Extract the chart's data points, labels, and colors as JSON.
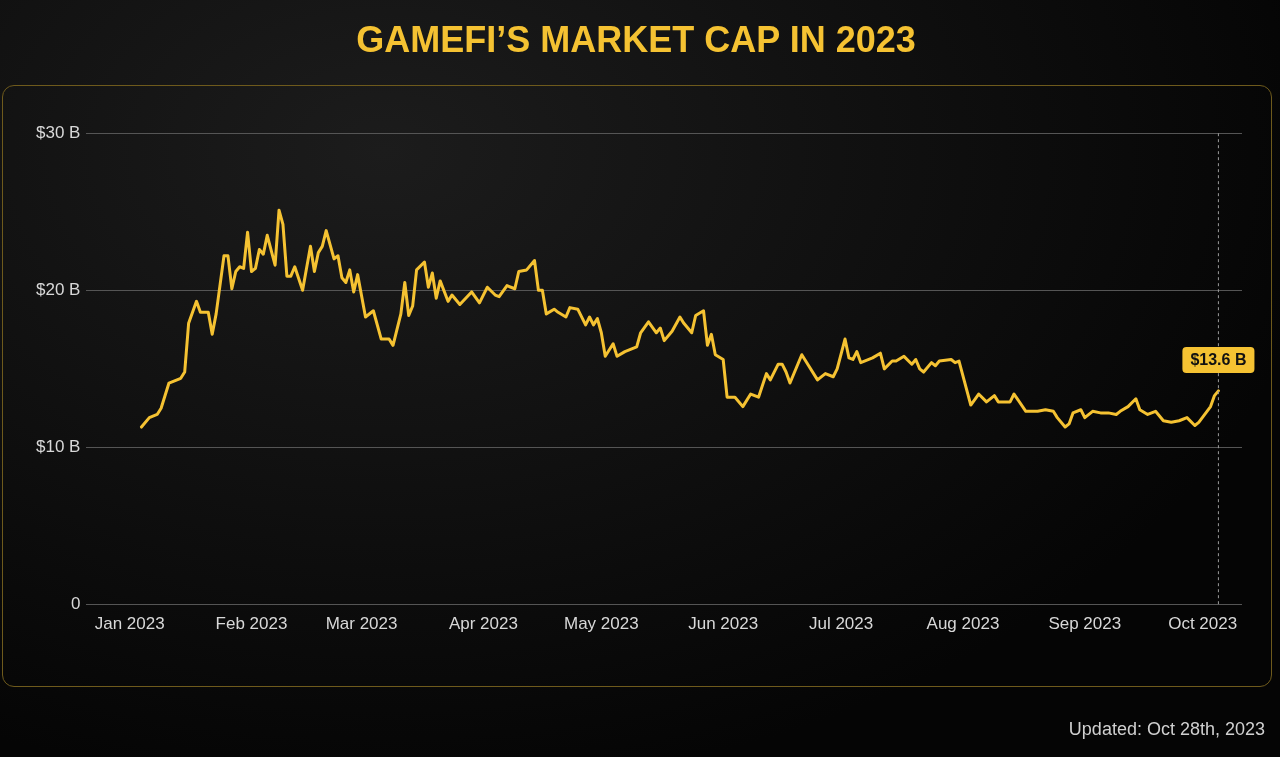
{
  "chart_data": {
    "type": "line",
    "title": "GAMEFI’S MARKET CAP IN 2023",
    "color": "#f5c232",
    "x": [
      "2023-01-04",
      "2023-01-06",
      "2023-01-08",
      "2023-01-09",
      "2023-01-11",
      "2023-01-14",
      "2023-01-15",
      "2023-01-16",
      "2023-01-18",
      "2023-01-19",
      "2023-01-21",
      "2023-01-22",
      "2023-01-23",
      "2023-01-25",
      "2023-01-26",
      "2023-01-27",
      "2023-01-28",
      "2023-01-29",
      "2023-01-30",
      "2023-01-31",
      "2023-02-01",
      "2023-02-02",
      "2023-02-03",
      "2023-02-04",
      "2023-02-05",
      "2023-02-07",
      "2023-02-08",
      "2023-02-09",
      "2023-02-10",
      "2023-02-11",
      "2023-02-12",
      "2023-02-14",
      "2023-02-16",
      "2023-02-17",
      "2023-02-18",
      "2023-02-19",
      "2023-02-20",
      "2023-02-22",
      "2023-02-23",
      "2023-02-24",
      "2023-02-25",
      "2023-02-26",
      "2023-02-27",
      "2023-02-28",
      "2023-03-02",
      "2023-03-04",
      "2023-03-06",
      "2023-03-08",
      "2023-03-09",
      "2023-03-11",
      "2023-03-12",
      "2023-03-13",
      "2023-03-14",
      "2023-03-15",
      "2023-03-17",
      "2023-03-18",
      "2023-03-19",
      "2023-03-20",
      "2023-03-21",
      "2023-03-23",
      "2023-03-24",
      "2023-03-26",
      "2023-03-29",
      "2023-03-31",
      "2023-04-02",
      "2023-04-04",
      "2023-04-05",
      "2023-04-07",
      "2023-04-09",
      "2023-04-10",
      "2023-04-12",
      "2023-04-14",
      "2023-04-15",
      "2023-04-16",
      "2023-04-17",
      "2023-04-19",
      "2023-04-20",
      "2023-04-22",
      "2023-04-23",
      "2023-04-25",
      "2023-04-27",
      "2023-04-28",
      "2023-04-29",
      "2023-04-30",
      "2023-05-01",
      "2023-05-02",
      "2023-05-04",
      "2023-05-05",
      "2023-05-07",
      "2023-05-10",
      "2023-05-11",
      "2023-05-13",
      "2023-05-15",
      "2023-05-16",
      "2023-05-17",
      "2023-05-19",
      "2023-05-21",
      "2023-05-22",
      "2023-05-24",
      "2023-05-25",
      "2023-05-27",
      "2023-05-28",
      "2023-05-29",
      "2023-05-30",
      "2023-06-01",
      "2023-06-02",
      "2023-06-04",
      "2023-06-06",
      "2023-06-08",
      "2023-06-10",
      "2023-06-12",
      "2023-06-13",
      "2023-06-15",
      "2023-06-16",
      "2023-06-17",
      "2023-06-18",
      "2023-06-21",
      "2023-06-22",
      "2023-06-25",
      "2023-06-27",
      "2023-06-29",
      "2023-06-30",
      "2023-07-02",
      "2023-07-03",
      "2023-07-04",
      "2023-07-05",
      "2023-07-06",
      "2023-07-09",
      "2023-07-11",
      "2023-07-12",
      "2023-07-14",
      "2023-07-15",
      "2023-07-17",
      "2023-07-19",
      "2023-07-20",
      "2023-07-21",
      "2023-07-22",
      "2023-07-24",
      "2023-07-25",
      "2023-07-26",
      "2023-07-29",
      "2023-07-30",
      "2023-07-31",
      "2023-08-03",
      "2023-08-05",
      "2023-08-07",
      "2023-08-09",
      "2023-08-10",
      "2023-08-13",
      "2023-08-14",
      "2023-08-17",
      "2023-08-20",
      "2023-08-22",
      "2023-08-24",
      "2023-08-25",
      "2023-08-27",
      "2023-08-28",
      "2023-08-29",
      "2023-08-31",
      "2023-09-01",
      "2023-09-03",
      "2023-09-05",
      "2023-09-07",
      "2023-09-09",
      "2023-09-10",
      "2023-09-12",
      "2023-09-14",
      "2023-09-15",
      "2023-09-17",
      "2023-09-19",
      "2023-09-21",
      "2023-09-23",
      "2023-09-25",
      "2023-09-27",
      "2023-09-29",
      "2023-09-30",
      "2023-10-03",
      "2023-10-04",
      "2023-10-05"
    ],
    "values": [
      11.3,
      11.9,
      12.1,
      12.5,
      14.1,
      14.4,
      14.8,
      17.9,
      19.3,
      18.6,
      18.6,
      17.2,
      18.5,
      22.2,
      22.2,
      20.1,
      21.2,
      21.5,
      21.4,
      23.7,
      21.2,
      21.4,
      22.6,
      22.3,
      23.5,
      21.6,
      25.1,
      24.2,
      20.9,
      20.9,
      21.5,
      20.0,
      22.8,
      21.2,
      22.4,
      22.8,
      23.8,
      22.0,
      22.2,
      20.8,
      20.5,
      21.3,
      19.9,
      21.0,
      18.3,
      18.7,
      16.9,
      16.9,
      16.5,
      18.5,
      20.5,
      18.4,
      19.0,
      21.3,
      21.8,
      20.2,
      21.1,
      19.5,
      20.6,
      19.3,
      19.7,
      19.1,
      19.9,
      19.2,
      20.2,
      19.7,
      19.6,
      20.3,
      20.1,
      21.2,
      21.3,
      21.9,
      20.0,
      20.0,
      18.5,
      18.8,
      18.6,
      18.3,
      18.9,
      18.8,
      17.8,
      18.3,
      17.8,
      18.2,
      17.3,
      15.8,
      16.6,
      15.8,
      16.1,
      16.4,
      17.3,
      18.0,
      17.3,
      17.6,
      16.8,
      17.4,
      18.3,
      17.9,
      17.3,
      18.4,
      18.7,
      16.5,
      17.2,
      15.9,
      15.6,
      13.2,
      13.2,
      12.6,
      13.4,
      13.2,
      14.7,
      14.3,
      15.3,
      15.3,
      14.8,
      14.1,
      15.9,
      15.5,
      14.3,
      14.7,
      14.5,
      15.0,
      16.9,
      15.7,
      15.6,
      16.1,
      15.4,
      15.7,
      16.0,
      15.0,
      15.5,
      15.5,
      15.8,
      15.3,
      15.6,
      15.0,
      14.8,
      15.4,
      15.2,
      15.5,
      15.6,
      15.4,
      15.5,
      12.7,
      13.4,
      12.9,
      13.3,
      12.9,
      12.9,
      13.4,
      12.3,
      12.3,
      12.4,
      12.3,
      11.9,
      11.3,
      11.5,
      12.2,
      12.4,
      11.9,
      12.3,
      12.2,
      12.2,
      12.1,
      12.3,
      12.6,
      13.1,
      12.4,
      12.1,
      12.3,
      11.7,
      11.6,
      11.7,
      11.9,
      11.4,
      11.6,
      12.6,
      13.3,
      13.6
    ],
    "xlim": [
      "2022-12-21",
      "2023-10-11"
    ],
    "xticks": [
      {
        "value": "2023-01-01",
        "label": "Jan 2023"
      },
      {
        "value": "2023-02-01",
        "label": "Feb 2023"
      },
      {
        "value": "2023-03-01",
        "label": "Mar 2023"
      },
      {
        "value": "2023-04-01",
        "label": "Apr 2023"
      },
      {
        "value": "2023-05-01",
        "label": "May 2023"
      },
      {
        "value": "2023-06-01",
        "label": "Jun 2023"
      },
      {
        "value": "2023-07-01",
        "label": "Jul 2023"
      },
      {
        "value": "2023-08-01",
        "label": "Aug 2023"
      },
      {
        "value": "2023-09-01",
        "label": "Sep 2023"
      },
      {
        "value": "2023-10-01",
        "label": "Oct 2023"
      }
    ],
    "ylim": [
      0,
      30
    ],
    "yticks": [
      {
        "value": 0,
        "label": "0"
      },
      {
        "value": 10,
        "label": "$10 B"
      },
      {
        "value": 20,
        "label": "$20 B"
      },
      {
        "value": 30,
        "label": "$30 B"
      }
    ],
    "grid": "y",
    "legend": false,
    "marker": "none",
    "line_style": "solid",
    "ref_lines": [
      {
        "axis": "x",
        "value": "2023-10-05",
        "color": "#9a9a9a",
        "line_style": "dashed"
      }
    ],
    "annotations": [
      {
        "text": "$13.6 B",
        "x": "2023-10-05",
        "y": 13.6
      },
      "Updated: Oct 28th, 2023"
    ]
  }
}
